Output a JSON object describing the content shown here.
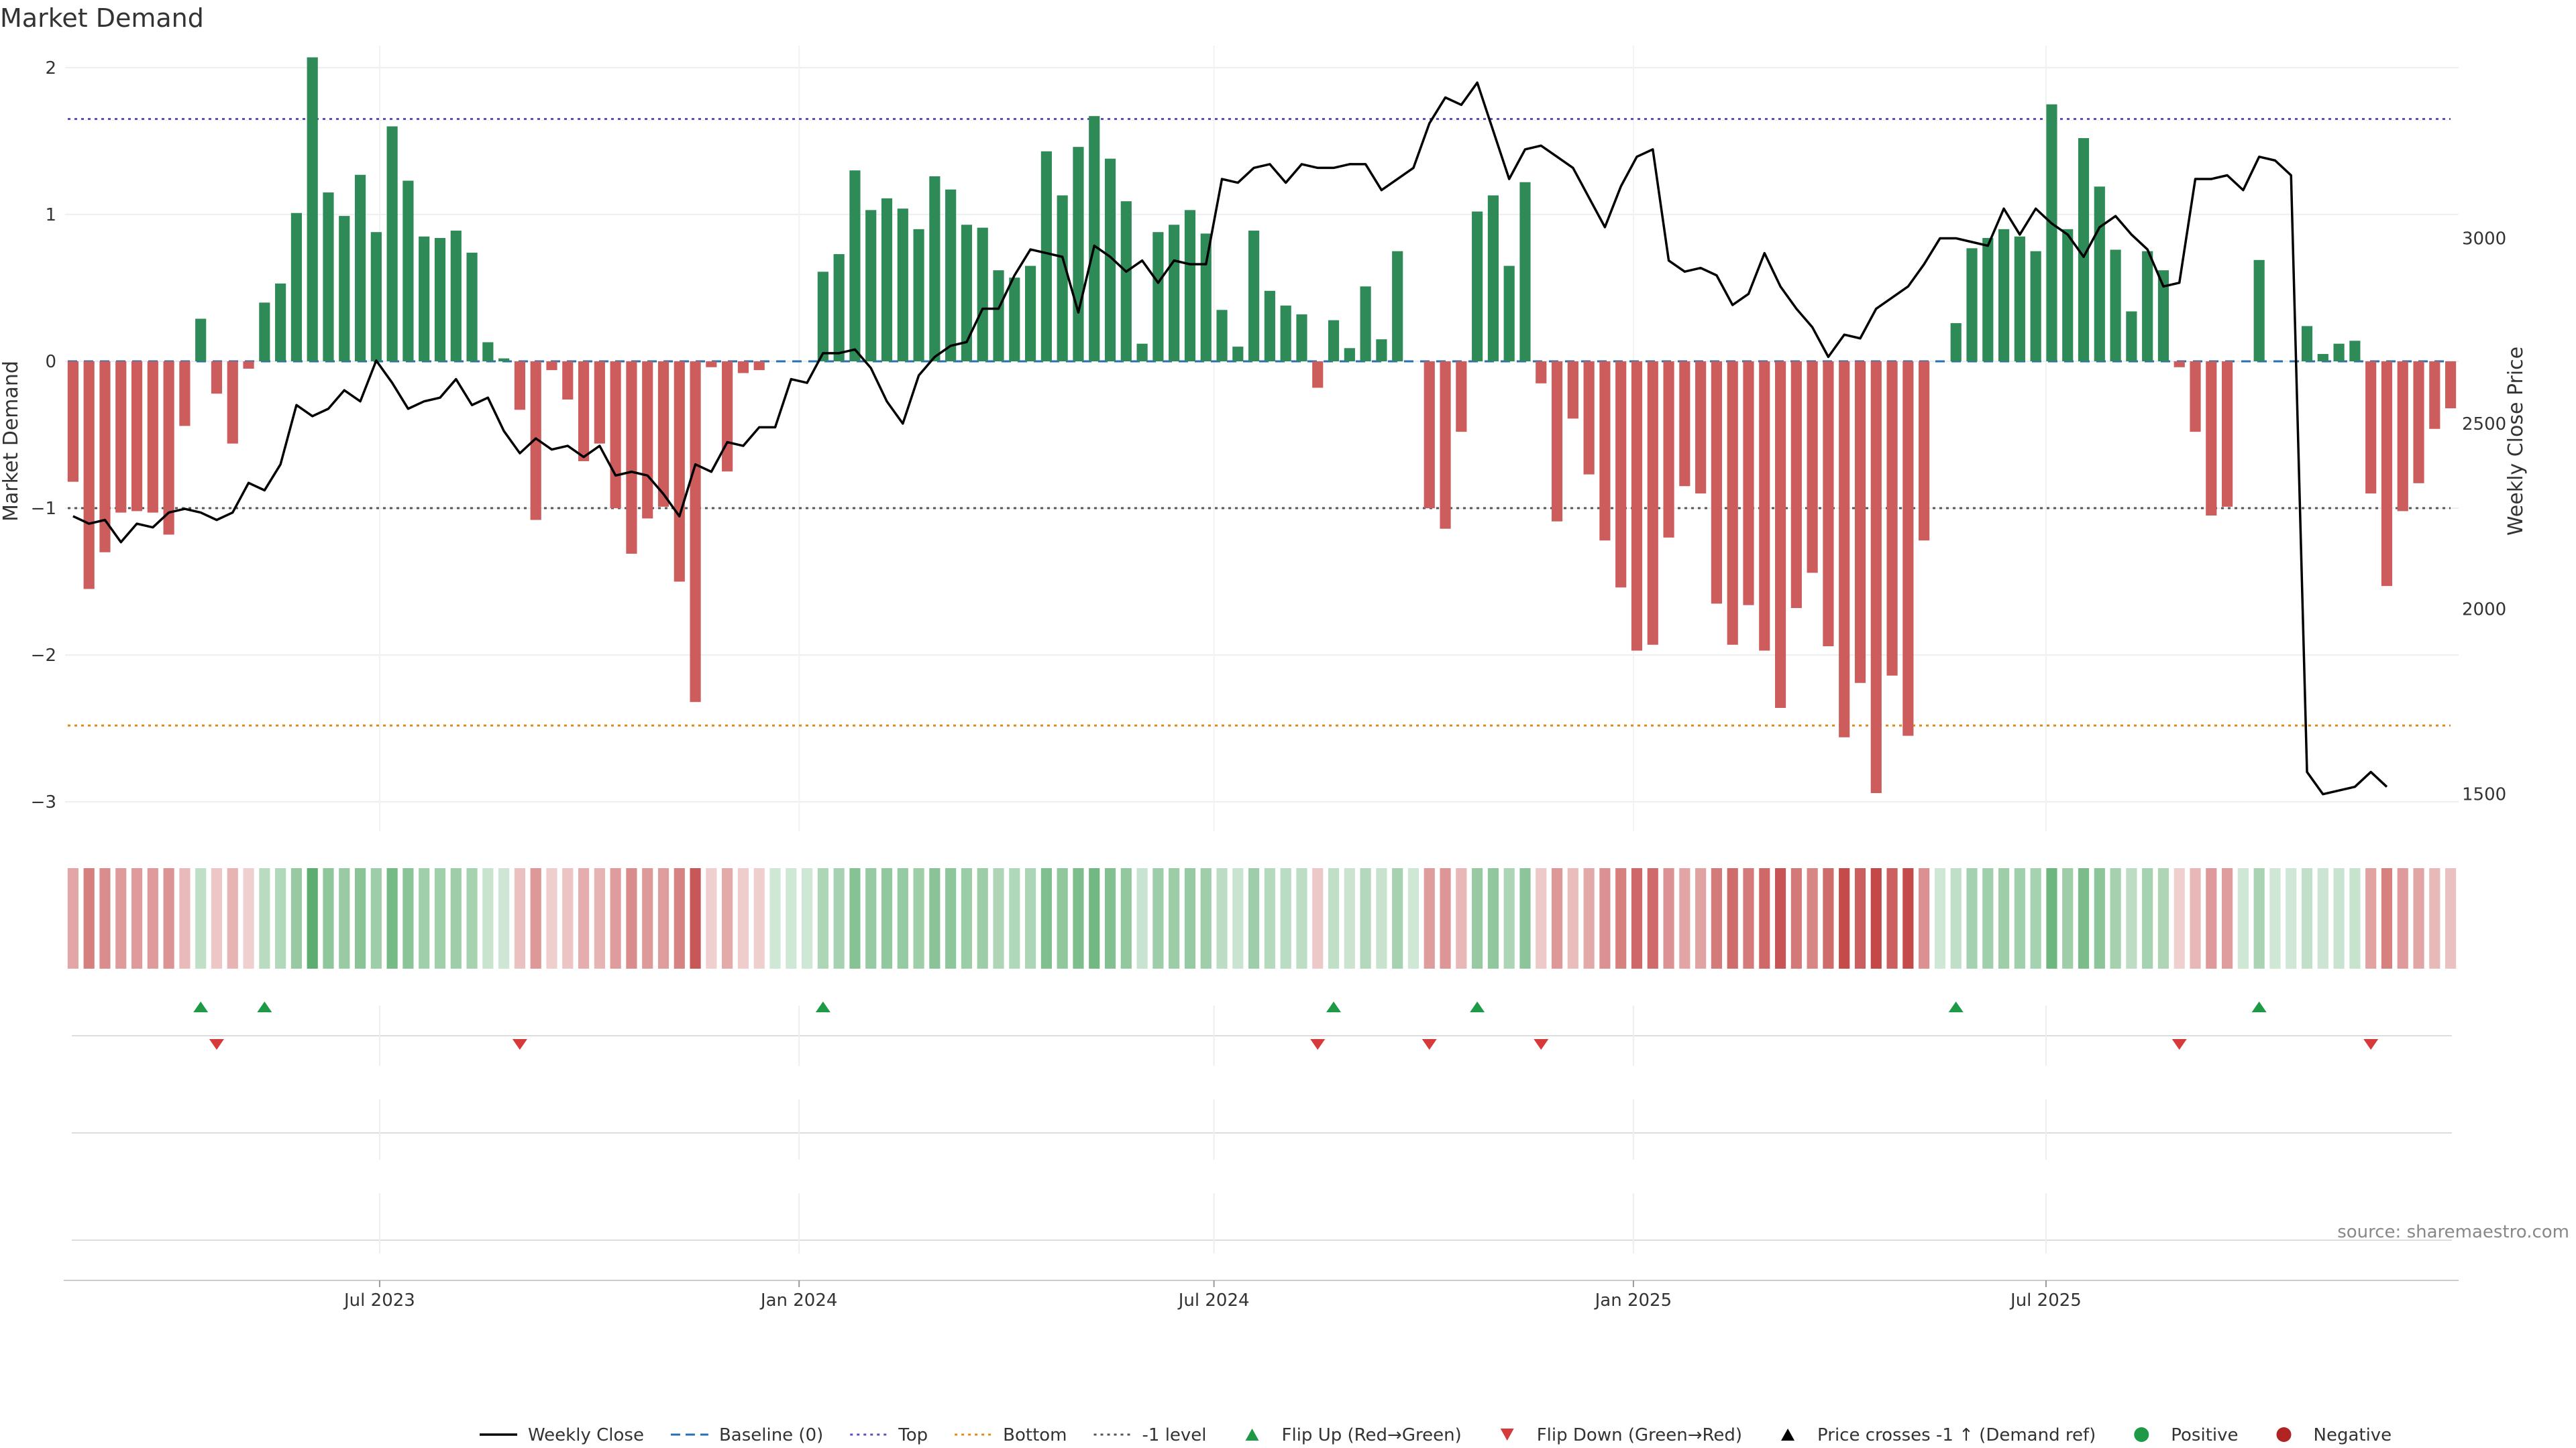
{
  "chart_data": {
    "type": "bar",
    "title": "Market Demand",
    "ylabel_left": "Market Demand",
    "ylabel_right": "Weekly Close Price",
    "source": "source: sharemaestro.com",
    "left_ticks": [
      "2",
      "1",
      "0",
      "−1",
      "−2",
      "−3"
    ],
    "left_tick_values": [
      2,
      1,
      0,
      -1,
      -2,
      -3
    ],
    "ylim_left": [
      -3.2,
      2.15
    ],
    "right_ticks": [
      "3000",
      "2500",
      "2000",
      "1500"
    ],
    "right_tick_values": [
      3000,
      2500,
      2000,
      1500
    ],
    "ylim_right": [
      1400,
      3520
    ],
    "x_ticks": [
      "Jul 2023",
      "Jan 2024",
      "Jul 2024",
      "Jan 2025",
      "Jul 2025"
    ],
    "x_tick_values": [
      "2023-07-01",
      "2024-01-01",
      "2024-07-01",
      "2025-01-01",
      "2025-07-01"
    ],
    "x_start": "2023-02-13",
    "weeks": 144,
    "reference_lines": [
      {
        "name": "Top",
        "value": 1.65,
        "color": "#5b4fbe",
        "style": "dotted"
      },
      {
        "name": "Bottom",
        "value": -2.48,
        "color": "#e08a1e",
        "style": "dotted"
      },
      {
        "name": "-1 level",
        "value": -1.0,
        "color": "#555555",
        "style": "dotted"
      },
      {
        "name": "Baseline (0)",
        "value": 0,
        "color": "#2a6fb0",
        "style": "dashed"
      }
    ],
    "demand": [
      -0.82,
      -1.55,
      -1.3,
      -1.03,
      -1.02,
      -1.03,
      -1.18,
      -0.44,
      0.29,
      -0.22,
      -0.56,
      -0.05,
      0.4,
      0.53,
      1.01,
      2.07,
      1.15,
      0.99,
      1.27,
      0.88,
      1.6,
      1.23,
      0.85,
      0.84,
      0.89,
      0.74,
      0.13,
      0.02,
      -0.33,
      -1.08,
      -0.06,
      -0.26,
      -0.68,
      -0.56,
      -1.0,
      -1.31,
      -1.07,
      -0.99,
      -1.5,
      -2.32,
      -0.04,
      -0.75,
      -0.08,
      -0.06,
      0.0,
      0.0,
      0.0,
      0.61,
      0.73,
      1.3,
      1.03,
      1.11,
      1.04,
      0.9,
      1.26,
      1.17,
      0.93,
      0.91,
      0.62,
      0.57,
      0.65,
      1.43,
      1.13,
      1.46,
      1.67,
      1.38,
      1.09,
      0.12,
      0.88,
      0.93,
      1.03,
      0.87,
      0.35,
      0.1,
      0.89,
      0.48,
      0.38,
      0.32,
      -0.18,
      0.28,
      0.09,
      0.51,
      0.15,
      0.75,
      0.0,
      -1.0,
      -1.14,
      -0.48,
      1.02,
      1.13,
      0.65,
      1.22,
      -0.15,
      -1.09,
      -0.39,
      -0.77,
      -1.22,
      -1.54,
      -1.97,
      -1.93,
      -1.2,
      -0.85,
      -0.9,
      -1.65,
      -1.93,
      -1.66,
      -1.97,
      -2.36,
      -1.68,
      -1.44,
      -1.94,
      -2.56,
      -2.19,
      -2.94,
      -2.14,
      -2.55,
      -1.22,
      0.0,
      0.26,
      0.77,
      0.84,
      0.9,
      0.85,
      0.75,
      1.75,
      0.9,
      1.52,
      1.19,
      0.76,
      0.34,
      0.75,
      0.62,
      -0.04,
      -0.48,
      -1.05,
      -0.99,
      0.0,
      0.69,
      0.0,
      0.0,
      0.24,
      0.05,
      0.12,
      0.14,
      -0.9,
      -1.53,
      -1.02,
      -0.83,
      -0.46,
      -0.32
    ],
    "weekly_close": [
      2250,
      2230,
      2240,
      2180,
      2230,
      2220,
      2260,
      2270,
      2260,
      2240,
      2260,
      2340,
      2320,
      2390,
      2550,
      2520,
      2540,
      2590,
      2560,
      2670,
      2610,
      2540,
      2560,
      2570,
      2620,
      2550,
      2570,
      2480,
      2420,
      2460,
      2430,
      2440,
      2410,
      2440,
      2360,
      2370,
      2360,
      2310,
      2250,
      2390,
      2370,
      2450,
      2440,
      2490,
      2490,
      2620,
      2610,
      2690,
      2690,
      2700,
      2650,
      2560,
      2500,
      2630,
      2680,
      2710,
      2720,
      2810,
      2810,
      2900,
      2970,
      2960,
      2950,
      2800,
      2980,
      2950,
      2910,
      2940,
      2880,
      2940,
      2930,
      2930,
      3160,
      3150,
      3190,
      3200,
      3150,
      3200,
      3190,
      3190,
      3200,
      3200,
      3130,
      3160,
      3190,
      3310,
      3380,
      3360,
      3420,
      3290,
      3160,
      3240,
      3250,
      3220,
      3190,
      3110,
      3030,
      3140,
      3220,
      3240,
      2940,
      2910,
      2920,
      2900,
      2820,
      2850,
      2960,
      2870,
      2810,
      2760,
      2680,
      2740,
      2730,
      2810,
      2840,
      2870,
      2930,
      3000,
      3000,
      2990,
      2980,
      3080,
      3010,
      3080,
      3040,
      3010,
      2950,
      3030,
      3060,
      3010,
      2970,
      2870,
      2880,
      3160,
      3160,
      3170,
      3130,
      3220,
      3210,
      3170,
      1560,
      1500,
      1510,
      1520,
      1560,
      1520
    ]
  },
  "legend": [
    {
      "label": "Weekly Close",
      "symbol": "line",
      "color": "#000000"
    },
    {
      "label": "Baseline (0)",
      "symbol": "dashed",
      "color": "#2a6fb0"
    },
    {
      "label": "Top",
      "symbol": "dotted",
      "color": "#5b4fbe"
    },
    {
      "label": "Bottom",
      "symbol": "dotted",
      "color": "#e08a1e"
    },
    {
      "label": "-1 level",
      "symbol": "dotted",
      "color": "#555555"
    },
    {
      "label": "Flip Up (Red→Green)",
      "symbol": "triangle-up",
      "color": "#1e9a47"
    },
    {
      "label": "Flip Down (Green→Red)",
      "symbol": "triangle-down",
      "color": "#d63a3a"
    },
    {
      "label": "Price crosses -1 ↑ (Demand ref)",
      "symbol": "triangle-up",
      "color": "#000000"
    },
    {
      "label": "Positive",
      "symbol": "circle",
      "color": "#1e9a47"
    },
    {
      "label": "Negative",
      "symbol": "circle",
      "color": "#b02424"
    }
  ],
  "colors": {
    "positive_bar": "#2e8b57",
    "negative_bar": "#cd5c5c",
    "flip_up": "#1e9a47",
    "flip_down": "#d63a3a",
    "price_line": "#000000"
  }
}
